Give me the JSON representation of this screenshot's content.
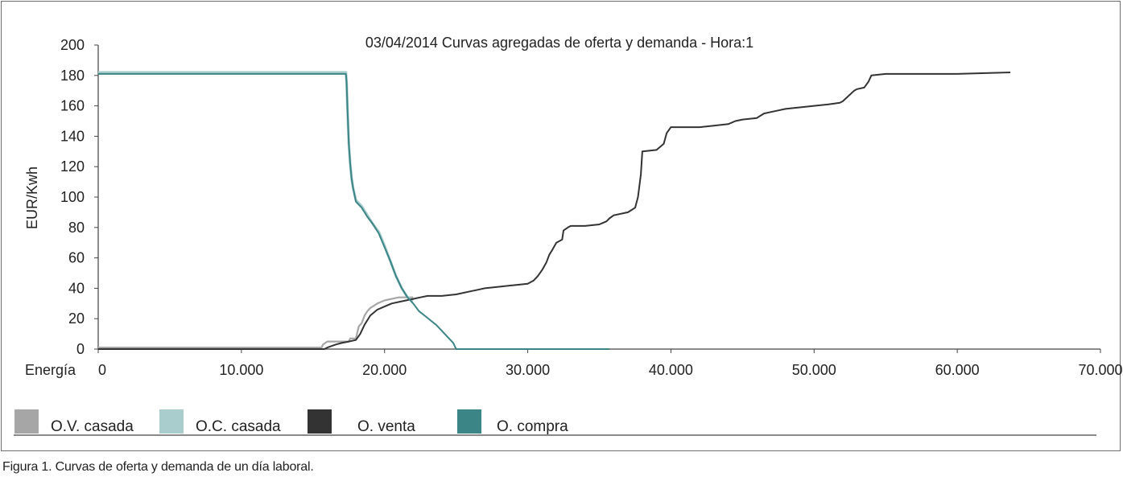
{
  "chart_data": {
    "type": "line",
    "title": "03/04/2014 Curvas agregadas de oferta y demanda - Hora:1",
    "xlabel": "Energía",
    "ylabel": "EUR/Kwh",
    "xlim": [
      0,
      70000
    ],
    "ylim": [
      0,
      200
    ],
    "x_ticks": [
      0,
      10000,
      20000,
      30000,
      40000,
      50000,
      60000,
      70000
    ],
    "x_tick_labels": [
      "0",
      "10.000",
      "20.000",
      "30.000",
      "40.000",
      "50.000",
      "60.000",
      "70.000"
    ],
    "y_ticks": [
      0,
      20,
      40,
      60,
      80,
      100,
      120,
      140,
      160,
      180,
      200
    ],
    "y_tick_labels": [
      "0",
      "20",
      "40",
      "60",
      "80",
      "100",
      "120",
      "140",
      "160",
      "180",
      "200"
    ],
    "grid": false,
    "legend_position": "bottom",
    "series": [
      {
        "name": "O.V. casada",
        "color": "#a6a6a6",
        "x": [
          0,
          15600,
          15700,
          16000,
          17500,
          17600,
          18000,
          18200,
          18400,
          18600,
          18800,
          19000,
          19500,
          20000,
          20500,
          21000,
          21500,
          22000
        ],
        "y": [
          1,
          1,
          3,
          5,
          5,
          7,
          7,
          15,
          17,
          22,
          25,
          27,
          30,
          32,
          33,
          34,
          34,
          34
        ]
      },
      {
        "name": "O.C. casada",
        "color": "#a9cccd",
        "x": [
          0,
          17300,
          17350,
          17400,
          17500,
          17600,
          17700,
          17800,
          18000,
          18400,
          18800,
          19200,
          19600,
          20000,
          20400,
          20800,
          21200,
          21600,
          22000
        ],
        "y": [
          182,
          182,
          175,
          160,
          135,
          122,
          112,
          106,
          98,
          94,
          88,
          82,
          77,
          68,
          58,
          48,
          40,
          34,
          32
        ]
      },
      {
        "name": "O. venta",
        "color": "#333333",
        "x": [
          0,
          15800,
          16000,
          16300,
          16600,
          17000,
          17500,
          18000,
          18300,
          18600,
          19000,
          19500,
          20000,
          20500,
          21000,
          21500,
          22000,
          22500,
          23000,
          24000,
          25000,
          26000,
          26500,
          27000,
          28000,
          29000,
          30000,
          30400,
          30700,
          31000,
          31300,
          31500,
          31700,
          32000,
          32400,
          32500,
          32800,
          33000,
          34000,
          35000,
          35500,
          35700,
          36000,
          37000,
          37500,
          37700,
          37900,
          38000,
          39000,
          39500,
          39700,
          40000,
          41000,
          42000,
          43000,
          44000,
          44500,
          45000,
          46000,
          46500,
          47000,
          47500,
          48000,
          49000,
          50000,
          51000,
          51800,
          52000,
          52800,
          53000,
          53500,
          53800,
          54000,
          55000,
          60000,
          63700
        ],
        "y": [
          0,
          0,
          1,
          2,
          3,
          4,
          5,
          6,
          10,
          16,
          22,
          26,
          28,
          30,
          31,
          32,
          33,
          34,
          35,
          35,
          36,
          38,
          39,
          40,
          41,
          42,
          43,
          45,
          48,
          52,
          57,
          62,
          65,
          70,
          72,
          78,
          80,
          81,
          81,
          82,
          84,
          86,
          88,
          90,
          93,
          100,
          115,
          130,
          131,
          135,
          142,
          146,
          146,
          146,
          147,
          148,
          150,
          151,
          152,
          155,
          156,
          157,
          158,
          159,
          160,
          161,
          162,
          163,
          170,
          171,
          172,
          176,
          180,
          181,
          181,
          182
        ]
      },
      {
        "name": "O. compra",
        "color": "#3c8586",
        "x": [
          0,
          17300,
          17350,
          17400,
          17500,
          17600,
          17700,
          17800,
          18000,
          18400,
          18800,
          19200,
          19600,
          20000,
          20400,
          20800,
          21200,
          21600,
          22000,
          22400,
          22800,
          23200,
          23600,
          24000,
          24400,
          24800,
          25000,
          26000,
          30000,
          35700
        ],
        "y": [
          181,
          181,
          175,
          160,
          135,
          122,
          112,
          106,
          97,
          93,
          87,
          82,
          76,
          67,
          58,
          48,
          40,
          34,
          30,
          25,
          22,
          19,
          16,
          12,
          8,
          4,
          0,
          0,
          0,
          0
        ]
      }
    ]
  },
  "caption": "Figura 1. Curvas de oferta y demanda de un día laboral."
}
